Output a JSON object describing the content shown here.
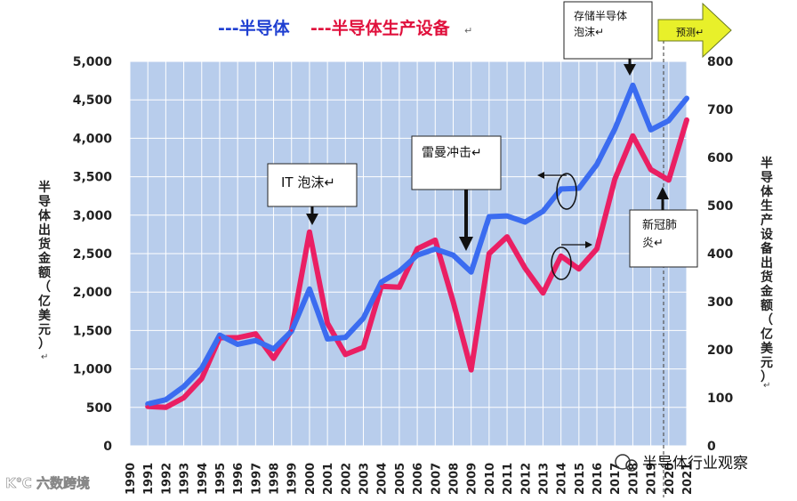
{
  "chart_data": {
    "type": "line",
    "title_parts": [
      {
        "text": "---半导体",
        "color": "#1f3fd1"
      },
      {
        "text": "---半导体生产设备",
        "color": "#e0103c"
      }
    ],
    "ylabel_left": "半导体出货金额（亿美元）",
    "ylabel_right": "半导体生产设备出货金额（亿美元）",
    "y_left_ticks": [
      "0",
      "500",
      "1,000",
      "1,500",
      "2,000",
      "2,500",
      "3,000",
      "3,500",
      "4,000",
      "4,500",
      "5,000"
    ],
    "y_right_ticks": [
      "0",
      "100",
      "200",
      "300",
      "400",
      "500",
      "600",
      "700",
      "800"
    ],
    "ylim_left": [
      0,
      5000
    ],
    "ylim_right": [
      0,
      800
    ],
    "x_years": [
      "1990",
      "1991",
      "1992",
      "1993",
      "1994",
      "1995",
      "1996",
      "1997",
      "1998",
      "1999",
      "2000",
      "2001",
      "2002",
      "2003",
      "2004",
      "2005",
      "2006",
      "2007",
      "2008",
      "2009",
      "2010",
      "2011",
      "2012",
      "2013",
      "2014",
      "2015",
      "2016",
      "2017",
      "2018",
      "2019",
      "2020",
      "2021"
    ],
    "series": [
      {
        "name": "半导体",
        "axis": "left",
        "color": "#3b6cf0",
        "x": [
          "1991",
          "1992",
          "1993",
          "1994",
          "1995",
          "1996",
          "1997",
          "1998",
          "1999",
          "2000",
          "2001",
          "2002",
          "2003",
          "2004",
          "2005",
          "2006",
          "2007",
          "2008",
          "2009",
          "2010",
          "2011",
          "2012",
          "2013",
          "2014",
          "2015",
          "2016",
          "2017",
          "2018",
          "2019",
          "2020",
          "2021"
        ],
        "values": [
          545,
          600,
          770,
          1010,
          1440,
          1320,
          1370,
          1260,
          1490,
          2040,
          1390,
          1410,
          1660,
          2130,
          2270,
          2480,
          2560,
          2480,
          2260,
          2980,
          2990,
          2910,
          3050,
          3340,
          3350,
          3660,
          4120,
          4690,
          4110,
          4230,
          4520
        ]
      },
      {
        "name": "半导体生产设备",
        "axis": "right",
        "color": "#ea1f63",
        "x": [
          "1991",
          "1992",
          "1993",
          "1994",
          "1995",
          "1996",
          "1997",
          "1998",
          "1999",
          "2000",
          "2001",
          "2002",
          "2003",
          "2004",
          "2005",
          "2006",
          "2007",
          "2008",
          "2009",
          "2010",
          "2011",
          "2012",
          "2013",
          "2014",
          "2015",
          "2016",
          "2017",
          "2018",
          "2019",
          "2020",
          "2021"
        ],
        "values": [
          82,
          80,
          100,
          140,
          225,
          225,
          233,
          182,
          240,
          445,
          255,
          190,
          205,
          332,
          330,
          410,
          428,
          300,
          158,
          400,
          435,
          370,
          318,
          395,
          368,
          410,
          555,
          645,
          575,
          553,
          678
        ]
      }
    ],
    "annotations": [
      {
        "label": "IT 泡沫↵",
        "year": "2000"
      },
      {
        "label": "雷曼冲击↵",
        "year": "2009"
      },
      {
        "label": "存储半导体\n泡沫↵",
        "year": "2018"
      },
      {
        "label": "新冠肺\n炎↵",
        "year": "2020"
      }
    ],
    "forecast_label": "预测↵",
    "ylabel_left_trail": "↵",
    "ylabel_right_trail": "↵"
  },
  "watermarks": {
    "left": "K℃ 六数跨境",
    "right": "半导体行业观察"
  },
  "colors": {
    "plot_bg": "#b8cdec",
    "grid": "#ffffff",
    "forecast_arrow": "#e8f02a",
    "forecast_arrow_edge": "#6b7a20"
  }
}
